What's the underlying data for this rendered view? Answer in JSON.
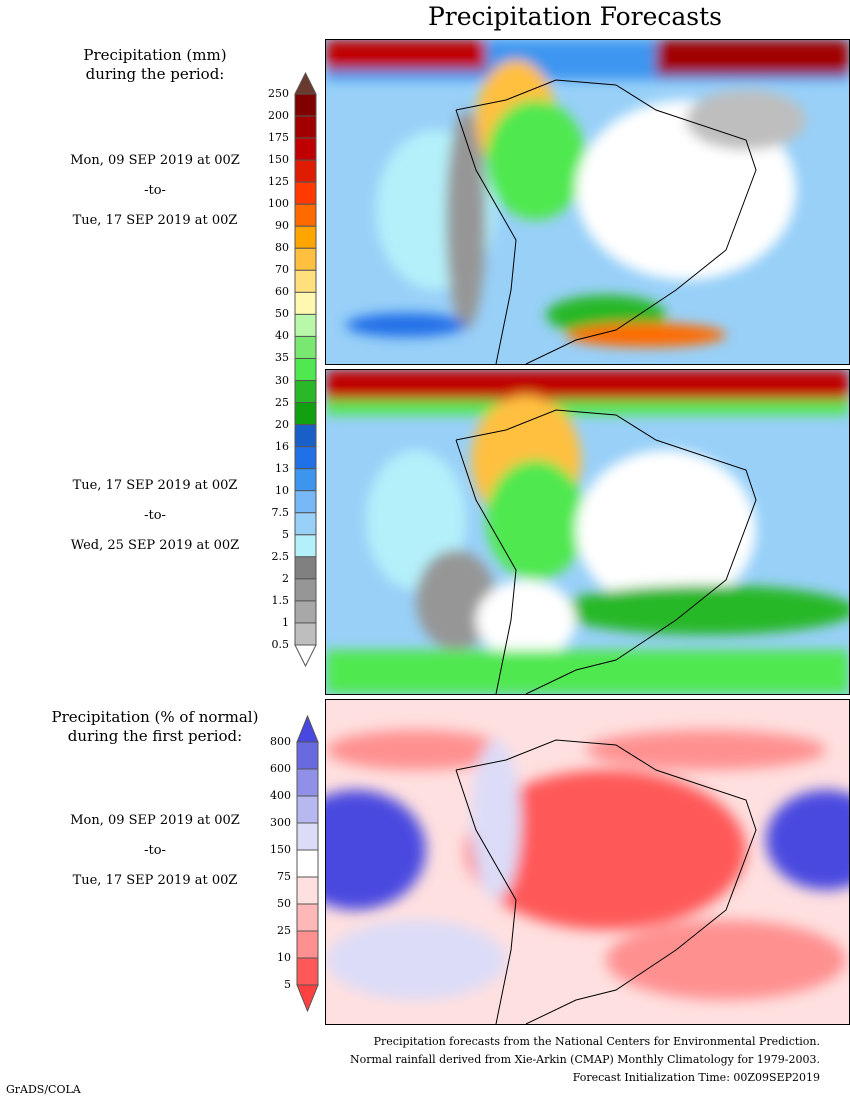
{
  "title": "Precipitation Forecasts",
  "legend1": {
    "heading_line1": "Precipitation (mm)",
    "heading_line2": "during the period:",
    "ticks": [
      "250",
      "200",
      "175",
      "150",
      "125",
      "100",
      "90",
      "80",
      "70",
      "60",
      "50",
      "40",
      "35",
      "30",
      "25",
      "20",
      "16",
      "13",
      "10",
      "7.5",
      "5",
      "2.5",
      "2",
      "1.5",
      "1",
      "0.5"
    ],
    "colors": [
      "#800000",
      "#a00000",
      "#c00000",
      "#e01c00",
      "#ff3a00",
      "#ff6a00",
      "#ffa500",
      "#ffc040",
      "#ffe07c",
      "#fff8b0",
      "#b8f8a8",
      "#78e870",
      "#50e850",
      "#28b828",
      "#10a010",
      "#1860c8",
      "#2070e8",
      "#3c96f0",
      "#78b8f8",
      "#98d0f8",
      "#b4f0fa",
      "#808080",
      "#969696",
      "#a8a8a8",
      "#bebebe"
    ],
    "over_color": "#6b3a2e",
    "under_color": "#ffffff"
  },
  "period1": {
    "start": "Mon, 09 SEP 2019 at 00Z",
    "sep": "-to-",
    "end": "Tue, 17 SEP 2019 at 00Z"
  },
  "period2": {
    "start": "Tue, 17 SEP 2019 at 00Z",
    "sep": "-to-",
    "end": "Wed, 25 SEP 2019 at 00Z"
  },
  "legend2": {
    "heading_line1": "Precipitation (% of normal)",
    "heading_line2": "during the first period:",
    "ticks": [
      "800",
      "600",
      "400",
      "300",
      "150",
      "75",
      "50",
      "25",
      "10",
      "5"
    ],
    "colors": [
      "#6a6ae0",
      "#9090e8",
      "#b8b8f0",
      "#dcdcf8",
      "#ffffff",
      "#ffe0e0",
      "#ffb8b8",
      "#ff9090",
      "#ff5858"
    ],
    "over_color": "#4848e0",
    "under_color": "#ff4040"
  },
  "period3": {
    "start": "Mon, 09 SEP 2019 at 00Z",
    "sep": "-to-",
    "end": "Tue, 17 SEP 2019 at 00Z"
  },
  "footer": {
    "line1": "Precipitation forecasts from the National Centers for Environmental Prediction.",
    "line2": "Normal rainfall derived from Xie-Arkin (CMAP) Monthly Climatology for 1979-2003.",
    "line3": "Forecast Initialization Time: 00Z09SEP2019"
  },
  "credit": "GrADS/COLA"
}
